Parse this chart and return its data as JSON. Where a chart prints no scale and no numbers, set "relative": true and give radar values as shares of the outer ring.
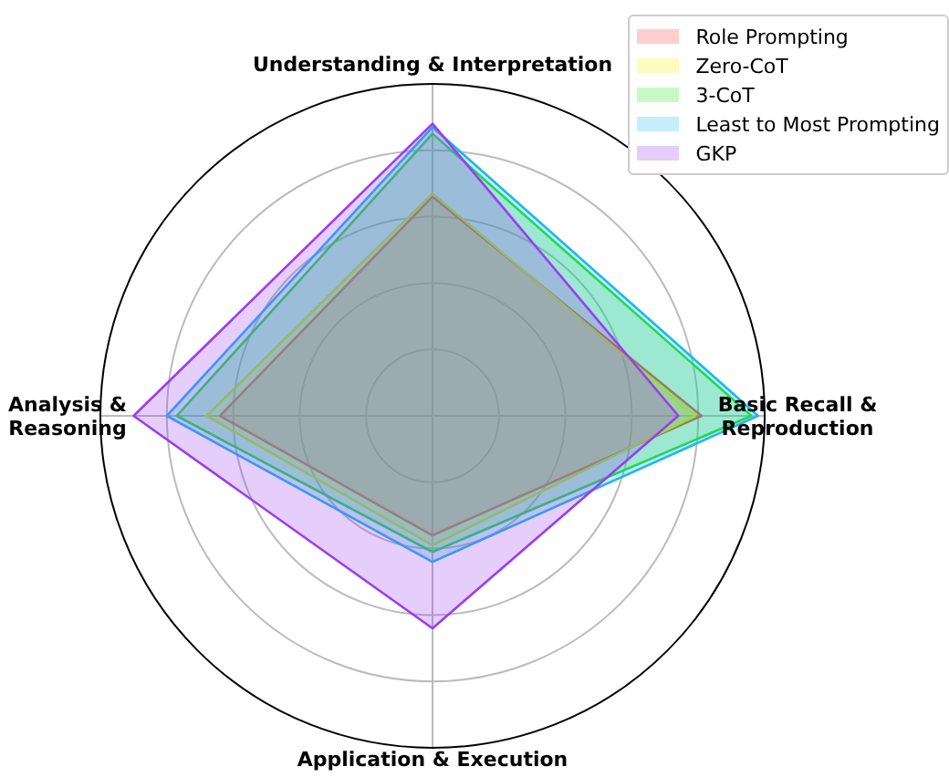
{
  "chart_data": {
    "type": "radar",
    "relative": true,
    "grid": true,
    "legend": "top right",
    "categories": [
      "Understanding & Interpretation",
      "Basic Recall &\nReproduction",
      "Application & Execution",
      "Analysis &\nReasoning"
    ],
    "series": [
      {
        "name": "Role Prompting",
        "color": "#ff3b3b",
        "values": [
          0.66,
          0.81,
          0.36,
          0.64
        ]
      },
      {
        "name": "Zero-CoT",
        "color": "#f2f200",
        "values": [
          0.67,
          0.79,
          0.39,
          0.68
        ]
      },
      {
        "name": "3-CoT",
        "color": "#1ee61e",
        "values": [
          0.85,
          0.96,
          0.41,
          0.77
        ]
      },
      {
        "name": "Least to Most Prompting",
        "color": "#1ab8f0",
        "values": [
          0.87,
          0.98,
          0.44,
          0.8
        ]
      },
      {
        "name": "GKP",
        "color": "#9a3cf5",
        "values": [
          0.88,
          0.74,
          0.64,
          0.9
        ]
      }
    ]
  }
}
